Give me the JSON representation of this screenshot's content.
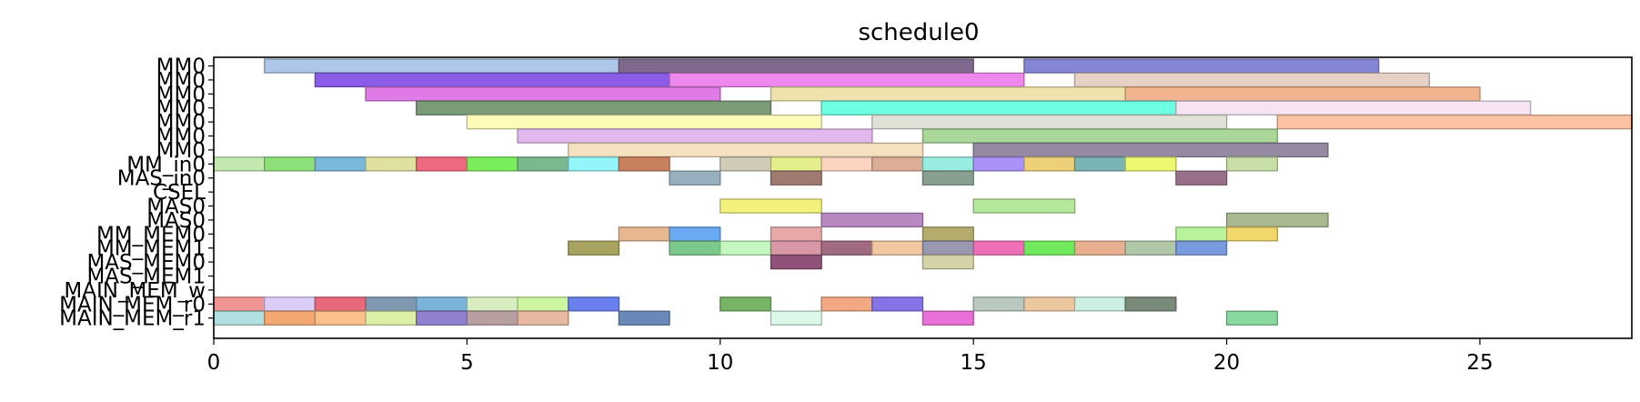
{
  "chart_data": {
    "type": "gantt",
    "title": "schedule0",
    "xlim": [
      0,
      28
    ],
    "x_ticks": [
      0,
      5,
      10,
      15,
      20,
      25
    ],
    "grid": false,
    "legend": "none",
    "rows": [
      "MM0",
      "MM0",
      "MM0",
      "MM0",
      "MM0",
      "MM0",
      "MM0",
      "MM_in0",
      "MAS_in0",
      "CSEL",
      "MAS0",
      "MAS0",
      "MM_MEM0",
      "MM_MEM1",
      "MAS_MEM0",
      "MAS_MEM1",
      "MAIN_MEM_w",
      "MAIN_MEM_r0",
      "MAIN_MEM_r1"
    ],
    "tasks": [
      {
        "row": 0,
        "start": 1,
        "end": 8,
        "color": "#aec7e8"
      },
      {
        "row": 0,
        "start": 8,
        "end": 15,
        "color": "#7f6a8e"
      },
      {
        "row": 0,
        "start": 16,
        "end": 23,
        "color": "#8585d6"
      },
      {
        "row": 1,
        "start": 2,
        "end": 9,
        "color": "#8a5ce8"
      },
      {
        "row": 1,
        "start": 9,
        "end": 16,
        "color": "#ee88ee"
      },
      {
        "row": 1,
        "start": 17,
        "end": 24,
        "color": "#e8d2c8"
      },
      {
        "row": 2,
        "start": 3,
        "end": 10,
        "color": "#e07ae6"
      },
      {
        "row": 2,
        "start": 11,
        "end": 18,
        "color": "#f0e2ac"
      },
      {
        "row": 2,
        "start": 18,
        "end": 25,
        "color": "#f2b48e"
      },
      {
        "row": 3,
        "start": 4,
        "end": 11,
        "color": "#7a9a78"
      },
      {
        "row": 3,
        "start": 12,
        "end": 19,
        "color": "#6cffe2"
      },
      {
        "row": 3,
        "start": 19,
        "end": 26,
        "color": "#f6e4f4"
      },
      {
        "row": 4,
        "start": 5,
        "end": 12,
        "color": "#fffcb8"
      },
      {
        "row": 4,
        "start": 13,
        "end": 20,
        "color": "#e0e2d8"
      },
      {
        "row": 4,
        "start": 21,
        "end": 28,
        "color": "#fcc2a4"
      },
      {
        "row": 5,
        "start": 6,
        "end": 13,
        "color": "#e2b8ee"
      },
      {
        "row": 5,
        "start": 14,
        "end": 21,
        "color": "#aad89a"
      },
      {
        "row": 6,
        "start": 7,
        "end": 14,
        "color": "#f5e0c0"
      },
      {
        "row": 6,
        "start": 15,
        "end": 22,
        "color": "#958aa2"
      },
      {
        "row": 7,
        "start": 0,
        "end": 1,
        "color": "#c4e8b0"
      },
      {
        "row": 7,
        "start": 1,
        "end": 2,
        "color": "#8ee07a"
      },
      {
        "row": 7,
        "start": 2,
        "end": 3,
        "color": "#7ab8da"
      },
      {
        "row": 7,
        "start": 3,
        "end": 4,
        "color": "#e0e0a0"
      },
      {
        "row": 7,
        "start": 4,
        "end": 5,
        "color": "#ee6a80"
      },
      {
        "row": 7,
        "start": 5,
        "end": 6,
        "color": "#7aee5a"
      },
      {
        "row": 7,
        "start": 6,
        "end": 7,
        "color": "#7ab890"
      },
      {
        "row": 7,
        "start": 7,
        "end": 8,
        "color": "#94f6fa"
      },
      {
        "row": 7,
        "start": 8,
        "end": 9,
        "color": "#c8805e"
      },
      {
        "row": 7,
        "start": 10,
        "end": 11,
        "color": "#d0ccb8"
      },
      {
        "row": 7,
        "start": 11,
        "end": 12,
        "color": "#e4ee8a"
      },
      {
        "row": 7,
        "start": 12,
        "end": 13,
        "color": "#fcd4c0"
      },
      {
        "row": 7,
        "start": 13,
        "end": 14,
        "color": "#dcae98"
      },
      {
        "row": 7,
        "start": 14,
        "end": 15,
        "color": "#98ece0"
      },
      {
        "row": 7,
        "start": 15,
        "end": 16,
        "color": "#aa92f8"
      },
      {
        "row": 7,
        "start": 16,
        "end": 17,
        "color": "#eed078"
      },
      {
        "row": 7,
        "start": 17,
        "end": 18,
        "color": "#7ab4b4"
      },
      {
        "row": 7,
        "start": 18,
        "end": 19,
        "color": "#eef870"
      },
      {
        "row": 7,
        "start": 20,
        "end": 21,
        "color": "#c8e0a8"
      },
      {
        "row": 8,
        "start": 9,
        "end": 10,
        "color": "#98b0c0"
      },
      {
        "row": 8,
        "start": 11,
        "end": 12,
        "color": "#a07a70"
      },
      {
        "row": 8,
        "start": 14,
        "end": 15,
        "color": "#88a090"
      },
      {
        "row": 8,
        "start": 19,
        "end": 20,
        "color": "#98708a"
      },
      {
        "row": 10,
        "start": 10,
        "end": 12,
        "color": "#f2f27c"
      },
      {
        "row": 10,
        "start": 15,
        "end": 17,
        "color": "#b4e89a"
      },
      {
        "row": 11,
        "start": 12,
        "end": 14,
        "color": "#b888c0"
      },
      {
        "row": 11,
        "start": 20,
        "end": 22,
        "color": "#a8b890"
      },
      {
        "row": 12,
        "start": 8,
        "end": 9,
        "color": "#e8b890"
      },
      {
        "row": 12,
        "start": 9,
        "end": 10,
        "color": "#6aaaf2"
      },
      {
        "row": 12,
        "start": 11,
        "end": 12,
        "color": "#e8a8a8"
      },
      {
        "row": 12,
        "start": 14,
        "end": 15,
        "color": "#b4ac6c"
      },
      {
        "row": 12,
        "start": 19,
        "end": 20,
        "color": "#b8f29a"
      },
      {
        "row": 12,
        "start": 20,
        "end": 21,
        "color": "#f2d86a"
      },
      {
        "row": 13,
        "start": 7,
        "end": 8,
        "color": "#a8a460"
      },
      {
        "row": 13,
        "start": 9,
        "end": 10,
        "color": "#7ac88a"
      },
      {
        "row": 13,
        "start": 10,
        "end": 11,
        "color": "#c4f8c0"
      },
      {
        "row": 13,
        "start": 11,
        "end": 12,
        "color": "#d898a8"
      },
      {
        "row": 13,
        "start": 12,
        "end": 13,
        "color": "#a06a80"
      },
      {
        "row": 13,
        "start": 13,
        "end": 14,
        "color": "#f2c8a0"
      },
      {
        "row": 13,
        "start": 14,
        "end": 15,
        "color": "#9898b0"
      },
      {
        "row": 13,
        "start": 15,
        "end": 16,
        "color": "#ee6eb8"
      },
      {
        "row": 13,
        "start": 16,
        "end": 17,
        "color": "#70ea5c"
      },
      {
        "row": 13,
        "start": 17,
        "end": 18,
        "color": "#e8b090"
      },
      {
        "row": 13,
        "start": 18,
        "end": 19,
        "color": "#b0c8a8"
      },
      {
        "row": 13,
        "start": 19,
        "end": 20,
        "color": "#7a9ae0"
      },
      {
        "row": 14,
        "start": 11,
        "end": 12,
        "color": "#905278"
      },
      {
        "row": 14,
        "start": 14,
        "end": 15,
        "color": "#d4d4a8"
      },
      {
        "row": 17,
        "start": 0,
        "end": 1,
        "color": "#f29494"
      },
      {
        "row": 17,
        "start": 1,
        "end": 2,
        "color": "#dcccf8"
      },
      {
        "row": 17,
        "start": 2,
        "end": 3,
        "color": "#e86a7a"
      },
      {
        "row": 17,
        "start": 3,
        "end": 4,
        "color": "#8098b0"
      },
      {
        "row": 17,
        "start": 4,
        "end": 5,
        "color": "#7ab4da"
      },
      {
        "row": 17,
        "start": 5,
        "end": 6,
        "color": "#d8eec0"
      },
      {
        "row": 17,
        "start": 6,
        "end": 7,
        "color": "#cef6a0"
      },
      {
        "row": 17,
        "start": 7,
        "end": 8,
        "color": "#6a80ee"
      },
      {
        "row": 17,
        "start": 10,
        "end": 11,
        "color": "#78b468"
      },
      {
        "row": 17,
        "start": 12,
        "end": 13,
        "color": "#f2a880"
      },
      {
        "row": 17,
        "start": 13,
        "end": 14,
        "color": "#8474e8"
      },
      {
        "row": 17,
        "start": 15,
        "end": 16,
        "color": "#b8cac0"
      },
      {
        "row": 17,
        "start": 16,
        "end": 17,
        "color": "#ecc8a0"
      },
      {
        "row": 17,
        "start": 17,
        "end": 18,
        "color": "#ccefe4"
      },
      {
        "row": 17,
        "start": 18,
        "end": 19,
        "color": "#7a8a78"
      },
      {
        "row": 18,
        "start": 0,
        "end": 1,
        "color": "#b0e0e0"
      },
      {
        "row": 18,
        "start": 1,
        "end": 2,
        "color": "#f2a870"
      },
      {
        "row": 18,
        "start": 2,
        "end": 3,
        "color": "#fcc08a"
      },
      {
        "row": 18,
        "start": 3,
        "end": 4,
        "color": "#dcf0a8"
      },
      {
        "row": 18,
        "start": 4,
        "end": 5,
        "color": "#9080d0"
      },
      {
        "row": 18,
        "start": 5,
        "end": 6,
        "color": "#b8a0a0"
      },
      {
        "row": 18,
        "start": 6,
        "end": 7,
        "color": "#e8b8a0"
      },
      {
        "row": 18,
        "start": 8,
        "end": 9,
        "color": "#6a88b8"
      },
      {
        "row": 18,
        "start": 11,
        "end": 12,
        "color": "#dcf8e8"
      },
      {
        "row": 18,
        "start": 14,
        "end": 15,
        "color": "#e870d8"
      },
      {
        "row": 18,
        "start": 20,
        "end": 21,
        "color": "#88d8a0"
      }
    ]
  }
}
